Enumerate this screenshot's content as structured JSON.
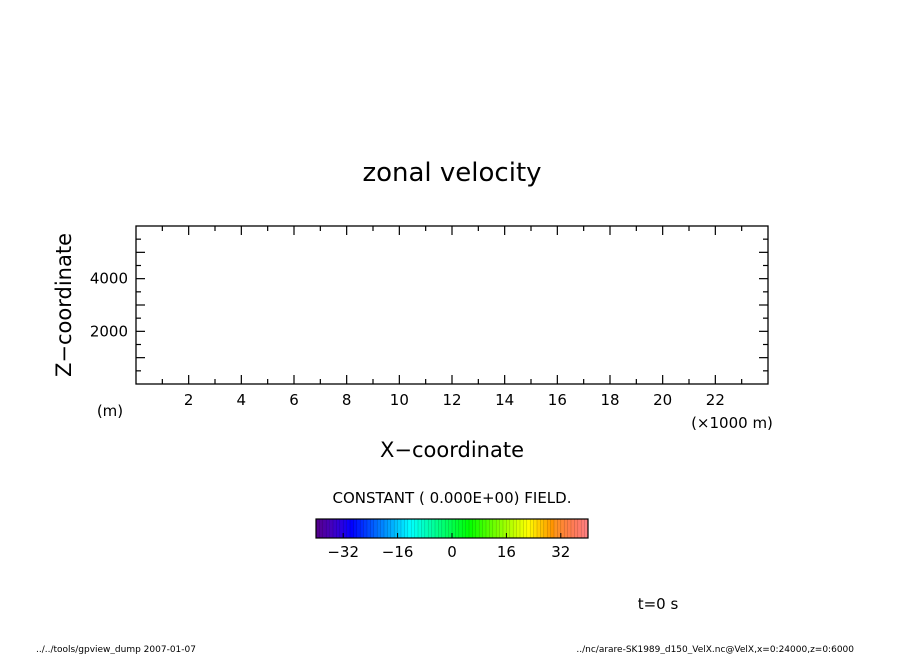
{
  "chart_data": {
    "type": "heatmap",
    "title": "zonal velocity",
    "xlabel": "X-coordinate",
    "ylabel": "Z-coordinate",
    "xlim": [
      0,
      24000
    ],
    "ylim": [
      0,
      6000
    ],
    "x_ticks": [
      2,
      4,
      6,
      8,
      10,
      12,
      14,
      16,
      18,
      20,
      22
    ],
    "y_ticks": [
      2000,
      4000
    ],
    "x_unit": "(×1000 m)",
    "y_unit": "(m)",
    "field_values": "constant 0",
    "field_message": "CONSTANT ( 0.000E+00) FIELD.",
    "colorbar": {
      "range": [
        -40,
        40
      ],
      "ticks": [
        -32,
        -16,
        0,
        16,
        32
      ],
      "colormap": "rainbow"
    }
  },
  "time_label": "t=0 s",
  "footer": {
    "left": "../../tools/gpview_dump  2007-01-07",
    "right": "../nc/arare-SK1989_d150_VelX.nc@VelX,x=0:24000,z=0:6000"
  }
}
